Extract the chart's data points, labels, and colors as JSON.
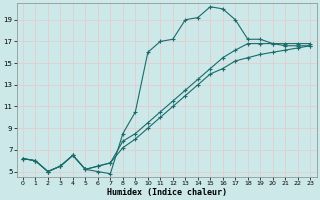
{
  "xlabel": "Humidex (Indice chaleur)",
  "background_color": "#cce8e8",
  "grid_color": "#e8c8c8",
  "line_color": "#1a6b6b",
  "xlim": [
    -0.5,
    23.5
  ],
  "ylim": [
    4.5,
    20.5
  ],
  "xticks": [
    0,
    1,
    2,
    3,
    4,
    5,
    6,
    7,
    8,
    9,
    10,
    11,
    12,
    13,
    14,
    15,
    16,
    17,
    18,
    19,
    20,
    21,
    22,
    23
  ],
  "yticks": [
    5,
    7,
    9,
    11,
    13,
    15,
    17,
    19
  ],
  "line1_x": [
    0,
    1,
    2,
    3,
    4,
    5,
    6,
    7,
    8,
    9,
    10,
    11,
    12,
    13,
    14,
    15,
    16,
    17,
    18,
    19,
    20,
    21,
    22,
    23
  ],
  "line1_y": [
    6.2,
    6.0,
    5.0,
    5.5,
    6.5,
    5.2,
    5.0,
    4.8,
    8.5,
    10.5,
    16.0,
    17.0,
    17.2,
    19.0,
    19.2,
    20.2,
    20.0,
    19.0,
    17.2,
    17.2,
    16.8,
    16.8,
    16.8,
    16.8
  ],
  "line2_x": [
    0,
    1,
    2,
    3,
    4,
    5,
    6,
    7,
    8,
    9,
    10,
    11,
    12,
    13,
    14,
    15,
    16,
    17,
    18,
    19,
    20,
    21,
    22,
    23
  ],
  "line2_y": [
    6.2,
    6.0,
    5.0,
    5.5,
    6.5,
    5.2,
    5.5,
    5.8,
    7.8,
    8.5,
    9.5,
    10.5,
    11.5,
    12.5,
    13.5,
    14.5,
    15.5,
    16.2,
    16.8,
    16.8,
    16.8,
    16.6,
    16.6,
    16.6
  ],
  "line3_x": [
    0,
    1,
    2,
    3,
    4,
    5,
    6,
    7,
    8,
    9,
    10,
    11,
    12,
    13,
    14,
    15,
    16,
    17,
    18,
    19,
    20,
    21,
    22,
    23
  ],
  "line3_y": [
    6.2,
    6.0,
    5.0,
    5.5,
    6.5,
    5.2,
    5.5,
    5.8,
    7.2,
    8.0,
    9.0,
    10.0,
    11.0,
    12.0,
    13.0,
    14.0,
    14.5,
    15.2,
    15.5,
    15.8,
    16.0,
    16.2,
    16.4,
    16.6
  ]
}
